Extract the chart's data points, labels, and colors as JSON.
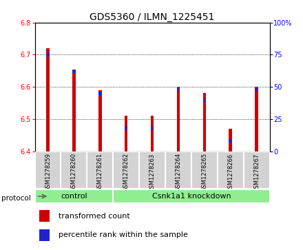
{
  "title": "GDS5360 / ILMN_1225451",
  "samples": [
    "GSM1278259",
    "GSM1278260",
    "GSM1278261",
    "GSM1278262",
    "GSM1278263",
    "GSM1278264",
    "GSM1278265",
    "GSM1278266",
    "GSM1278267"
  ],
  "transformed_counts": [
    6.72,
    6.65,
    6.59,
    6.51,
    6.51,
    6.6,
    6.58,
    6.47,
    6.6
  ],
  "percentile_ranks": [
    75,
    62,
    45,
    18,
    18,
    48,
    40,
    8,
    48
  ],
  "y_min": 6.4,
  "y_max": 6.8,
  "y_ticks": [
    6.4,
    6.5,
    6.6,
    6.7,
    6.8
  ],
  "right_y_ticks": [
    0,
    25,
    50,
    75,
    100
  ],
  "n_control": 3,
  "protocol_label": "protocol",
  "control_label": "control",
  "knockdown_label": "Csnk1a1 knockdown",
  "legend_transformed": "transformed count",
  "legend_percentile": "percentile rank within the sample",
  "bar_color_red": "#cc0000",
  "bar_color_blue": "#2222cc",
  "protocol_bg": "#90ee90",
  "sample_bg": "#d3d3d3",
  "bar_width": 0.12,
  "title_fontsize": 10,
  "tick_fontsize": 7,
  "legend_fontsize": 8
}
